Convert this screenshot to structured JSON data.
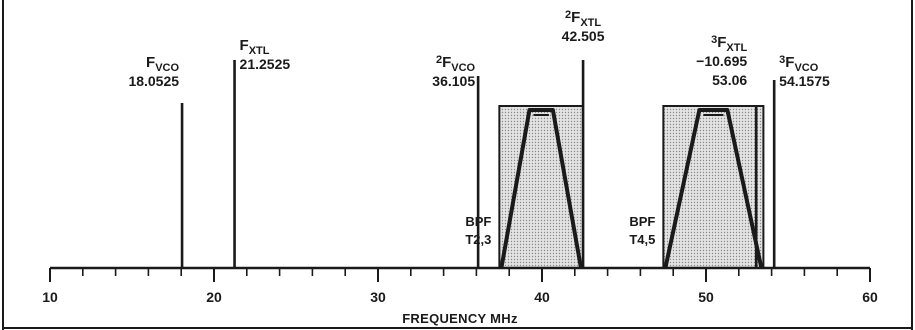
{
  "axis": {
    "title": "FREQUENCY MHz",
    "min": 10,
    "max": 60,
    "major_ticks": [
      "10",
      "20",
      "30",
      "40",
      "50",
      "60"
    ],
    "minor_step": 2
  },
  "signals": [
    {
      "id": "fvco",
      "mult": "",
      "name": "F",
      "sub": "VCO",
      "freq": 18.0525,
      "freq_label": "18.0525",
      "extra": ""
    },
    {
      "id": "fxtl",
      "mult": "",
      "name": "F",
      "sub": "XTL",
      "freq": 21.2525,
      "freq_label": "21.2525",
      "extra": ""
    },
    {
      "id": "2fvco",
      "mult": "2",
      "name": "F",
      "sub": "VCO",
      "freq": 36.105,
      "freq_label": "36.105",
      "extra": ""
    },
    {
      "id": "2fxtl",
      "mult": "2",
      "name": "F",
      "sub": "XTL",
      "freq": 42.505,
      "freq_label": "42.505",
      "extra": ""
    },
    {
      "id": "3fxtl",
      "mult": "3",
      "name": "F",
      "sub": "XTL",
      "freq": 53.06,
      "freq_label": "53.06",
      "extra": "−10.695"
    },
    {
      "id": "3fvco",
      "mult": "3",
      "name": "F",
      "sub": "VCO",
      "freq": 54.1575,
      "freq_label": "54.1575",
      "extra": ""
    }
  ],
  "filters": [
    {
      "id": "bpf-t23",
      "line1": "BPF",
      "line2": "T2,3",
      "low": 37.4,
      "high": 42.5
    },
    {
      "id": "bpf-t45",
      "line1": "BPF",
      "line2": "T4,5",
      "low": 47.4,
      "high": 53.5
    }
  ],
  "colors": {
    "ink": "#1a1a1a",
    "fill": "#d9d9d9"
  }
}
